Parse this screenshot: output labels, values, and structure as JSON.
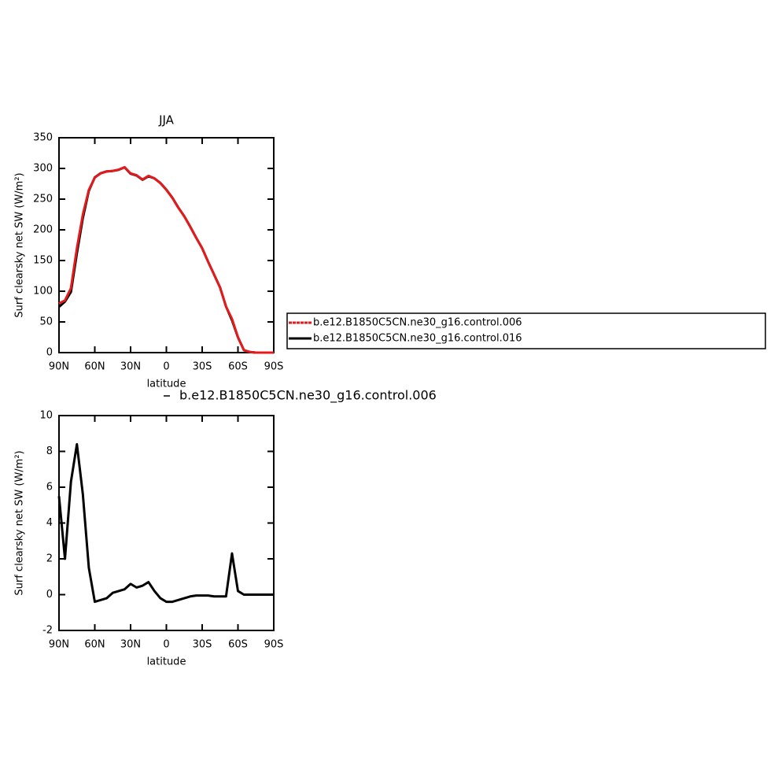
{
  "chart_data": [
    {
      "type": "line",
      "title": "JJA",
      "y_label": "Surf clearsky net SW (W/m²)",
      "x_label": "latitude",
      "x": [
        90,
        85,
        80,
        75,
        70,
        65,
        60,
        55,
        50,
        45,
        40,
        35,
        30,
        25,
        20,
        15,
        10,
        5,
        0,
        -5,
        -10,
        -15,
        -20,
        -25,
        -30,
        -35,
        -40,
        -45,
        -50,
        -55,
        -60,
        -65,
        -70,
        -75,
        -80,
        -85,
        -90
      ],
      "series": [
        {
          "name": "b.e12.B1850C5CN.ne30_g16.control.006",
          "color": "#e41a1c",
          "values": [
            80,
            85,
            105,
            170,
            225,
            265,
            285,
            292,
            295,
            296,
            298,
            302,
            292,
            289,
            282,
            288,
            284,
            276,
            265,
            252,
            236,
            222,
            205,
            187,
            170,
            148,
            127,
            106,
            75,
            55,
            25,
            4,
            1,
            0,
            0,
            0,
            0
          ]
        },
        {
          "name": "b.e12.B1850C5CN.ne30_g16.control.016",
          "color": "#000000",
          "values": [
            74.5,
            83,
            98.7,
            161.6,
            219.4,
            263.5,
            285.4,
            292.3,
            295.2,
            295.9,
            297.8,
            301.7,
            291.4,
            288.6,
            281.5,
            287.3,
            283.8,
            276.2,
            265.4,
            252.4,
            236.3,
            222.2,
            205.1,
            187,
            170,
            148,
            127.1,
            106.1,
            75.1,
            52.7,
            24.8,
            4,
            1,
            0,
            0,
            0,
            0
          ]
        }
      ],
      "xlim": [
        90,
        -90
      ],
      "xticks": [
        {
          "value": 90,
          "label": "90N"
        },
        {
          "value": 60,
          "label": "60N"
        },
        {
          "value": 30,
          "label": "30N"
        },
        0,
        {
          "value": -30,
          "label": "30S"
        },
        {
          "value": -60,
          "label": "60S"
        },
        {
          "value": -90,
          "label": "90S"
        }
      ],
      "ylim": [
        0,
        350
      ],
      "yticks": [
        0,
        50,
        100,
        150,
        200,
        250,
        300,
        350
      ],
      "legend": "right"
    },
    {
      "type": "line",
      "y_label": "Surf clearsky net SW (W/m²)",
      "x_label": "latitude",
      "x": [
        90,
        85,
        80,
        75,
        70,
        65,
        60,
        55,
        50,
        45,
        40,
        35,
        30,
        25,
        20,
        15,
        10,
        5,
        0,
        -5,
        -10,
        -15,
        -20,
        -25,
        -30,
        -35,
        -40,
        -45,
        -50,
        -55,
        -60,
        -65,
        -70,
        -75,
        -80,
        -85,
        -90
      ],
      "series": [
        {
          "name": "b.e12.B1850C5CN.ne30_g16.control.006",
          "color": "#000000",
          "values": [
            5.5,
            2.0,
            6.3,
            8.4,
            5.6,
            1.5,
            -0.4,
            -0.3,
            -0.2,
            0.1,
            0.2,
            0.3,
            0.6,
            0.4,
            0.5,
            0.7,
            0.2,
            -0.2,
            -0.4,
            -0.4,
            -0.3,
            -0.2,
            -0.1,
            -0.05,
            -0.05,
            -0.05,
            -0.1,
            -0.1,
            -0.1,
            2.3,
            0.2,
            0,
            0,
            0,
            0,
            0,
            0
          ]
        }
      ],
      "xlim": [
        90,
        -90
      ],
      "xticks": [
        {
          "value": 90,
          "label": "90N"
        },
        {
          "value": 60,
          "label": "60N"
        },
        {
          "value": 30,
          "label": "30N"
        },
        0,
        {
          "value": -30,
          "label": "30S"
        },
        {
          "value": -60,
          "label": "60S"
        },
        {
          "value": -90,
          "label": "90S"
        }
      ],
      "ylim": [
        -2,
        10
      ],
      "yticks": [
        -2,
        0,
        2,
        4,
        6,
        8,
        10
      ],
      "legend": "top"
    }
  ]
}
